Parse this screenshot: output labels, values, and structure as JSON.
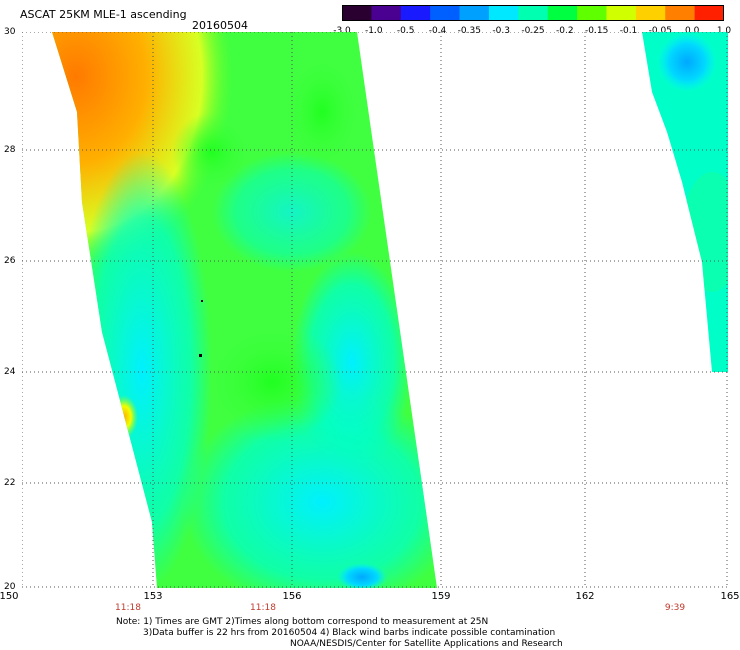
{
  "header": {
    "title": "ASCAT 25KM MLE-1 ascending",
    "date": "20160504"
  },
  "colorbar": {
    "labels": [
      "-3.0",
      "-1.0",
      "-0.5",
      "-0.4",
      "-0.35",
      "-0.3",
      "-0.25",
      "-0.2",
      "-0.15",
      "-0.1",
      "-0.05",
      "0.0",
      "1.0"
    ],
    "colors": [
      "#2a0030",
      "#4a0090",
      "#1a1aff",
      "#0060ff",
      "#00a0ff",
      "#00e8ff",
      "#00ffb0",
      "#00ff40",
      "#60ff00",
      "#d0ff00",
      "#ffd000",
      "#ff8000",
      "#ff2000"
    ]
  },
  "map": {
    "lat_labels": [
      "30",
      "28",
      "26",
      "24",
      "22",
      "20"
    ],
    "lon_labels": [
      "150",
      "153",
      "156",
      "159",
      "162",
      "165"
    ],
    "time_labels": [
      {
        "text": "11:18",
        "lon": 153
      },
      {
        "text": "11:18",
        "lon": 156
      },
      {
        "text": "9:39",
        "lon": 164
      }
    ]
  },
  "notes": {
    "line1": "Note: 1) Times are GMT 2)Times along bottom correspond to measurement at 25N",
    "line2": "3)Data buffer is 22 hrs from 20160504 4) Black wind barbs indicate possible contamination",
    "line3": "NOAA/NESDIS/Center for Satellite Applications and Research"
  }
}
